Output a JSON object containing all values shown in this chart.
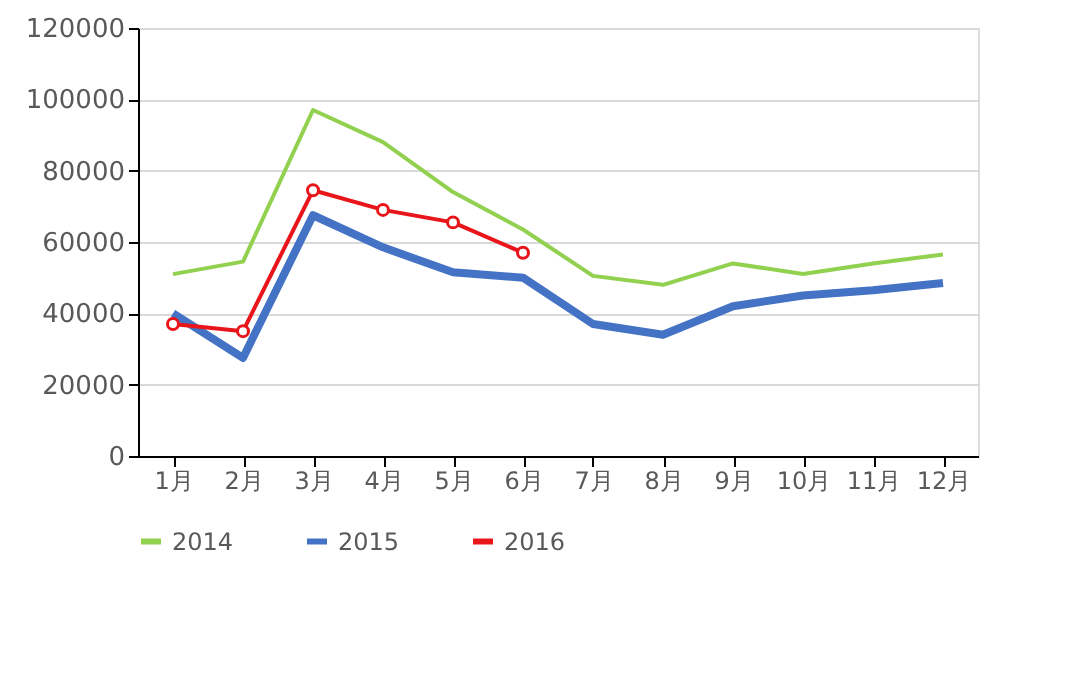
{
  "chart_data": {
    "type": "line",
    "categories": [
      "1月",
      "2月",
      "3月",
      "4月",
      "5月",
      "6月",
      "7月",
      "8月",
      "9月",
      "10月",
      "11月",
      "12月"
    ],
    "series": [
      {
        "name": "2014",
        "color": "#92d050",
        "marker": "none",
        "values": [
          51000,
          54500,
          97000,
          88000,
          74000,
          63500,
          50500,
          48000,
          54000,
          51000,
          54000,
          56500
        ]
      },
      {
        "name": "2015",
        "color": "#4472c4",
        "marker": "none",
        "values": [
          40000,
          27500,
          67500,
          58500,
          51500,
          50000,
          37000,
          34000,
          42000,
          45000,
          46500,
          48500
        ]
      },
      {
        "name": "2016",
        "color": "#e8161b",
        "marker": "circle",
        "values": [
          37000,
          35000,
          74500,
          69000,
          65500,
          57000,
          null,
          null,
          null,
          null,
          null,
          null
        ]
      }
    ],
    "ylim": [
      0,
      120000
    ],
    "yticks": [
      0,
      20000,
      40000,
      60000,
      80000,
      100000,
      120000
    ],
    "grid": "y",
    "legend": "bottom",
    "line_style": "solid"
  }
}
